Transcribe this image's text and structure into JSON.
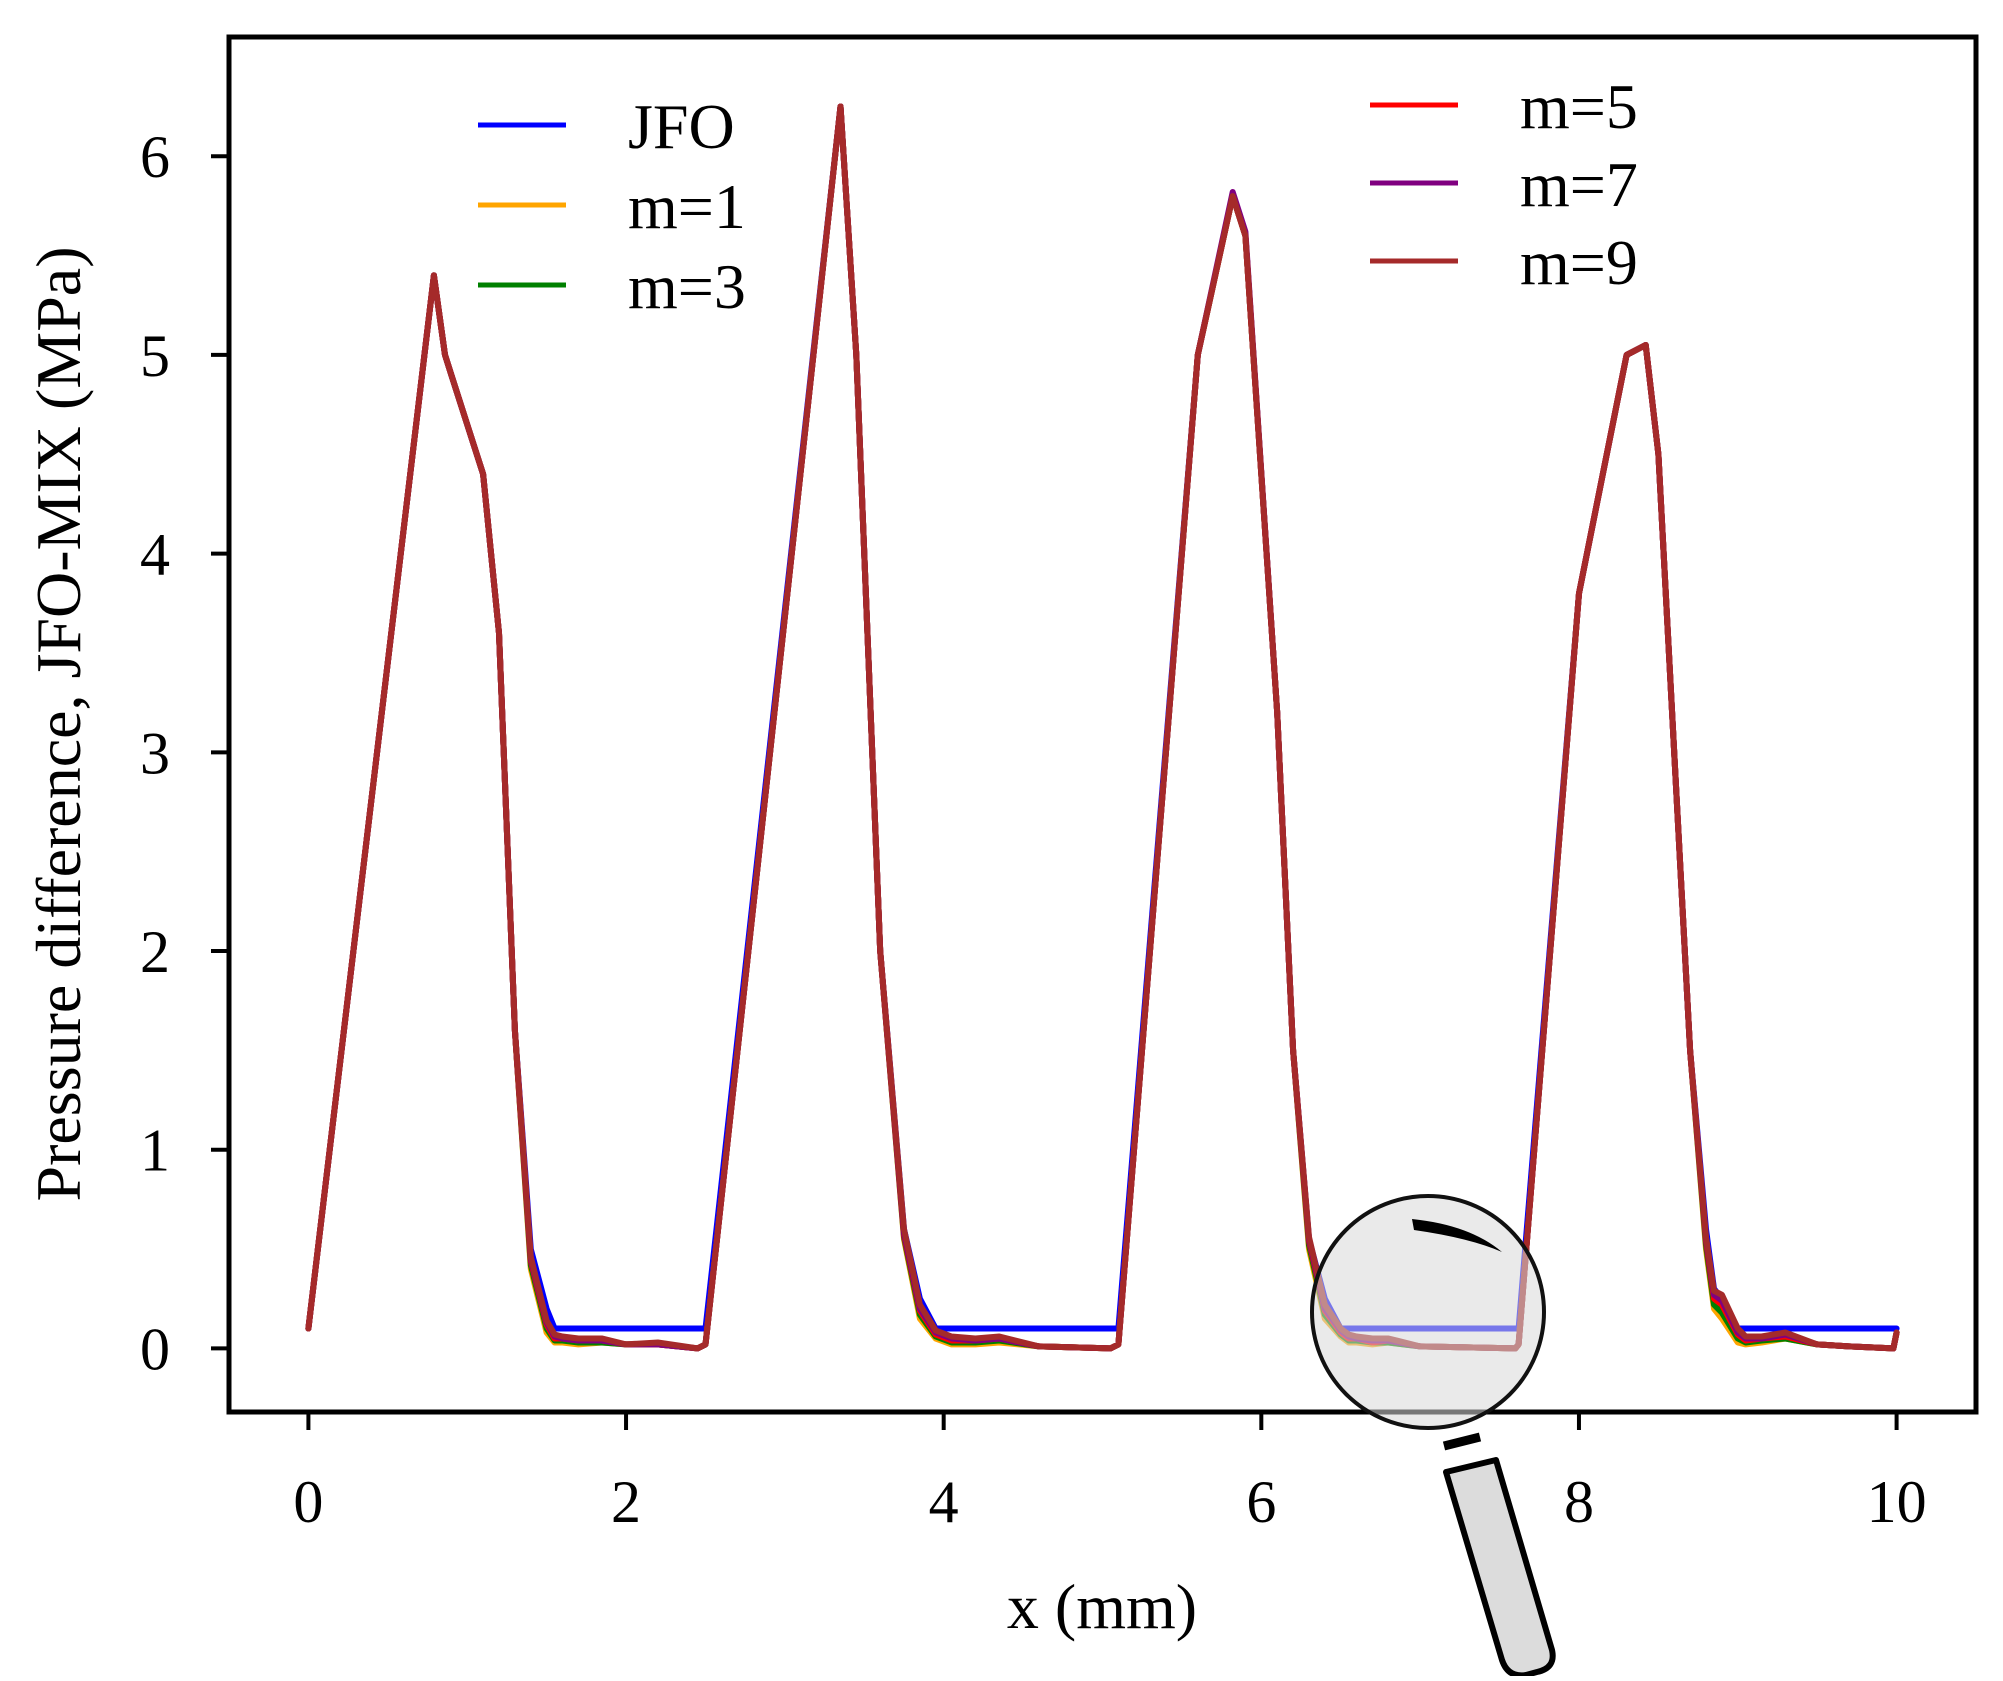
{
  "chart_data": {
    "type": "line",
    "title": "",
    "xlabel": "x (mm)",
    "ylabel": "Pressure difference, JFO-MIX (MPa)",
    "xlim": [
      -0.5,
      10.5
    ],
    "ylim": [
      -0.32,
      6.6
    ],
    "xticks": [
      0,
      2,
      4,
      6,
      8,
      10
    ],
    "yticks": [
      0,
      1,
      2,
      3,
      4,
      5,
      6
    ],
    "grid": false,
    "legend": {
      "columns": 2,
      "placement": "top"
    },
    "series": [
      {
        "name": "JFO",
        "color": "#0000ff",
        "x": [
          0,
          0.79,
          0.86,
          0.9,
          1.0,
          1.1,
          1.2,
          1.3,
          1.4,
          1.5,
          1.55,
          1.6,
          1.65,
          2.45,
          2.5,
          3.35,
          3.45,
          3.6,
          3.75,
          3.85,
          3.95,
          4.05,
          5.05,
          5.1,
          5.6,
          5.82,
          5.9,
          6.1,
          6.2,
          6.3,
          6.4,
          6.5,
          6.55,
          7.6,
          7.62,
          8.0,
          8.3,
          8.42,
          8.5,
          8.6,
          8.7,
          8.8,
          8.85,
          8.9,
          9.0,
          9.05,
          10.0
        ],
        "y": [
          0.1,
          5.4,
          5.0,
          4.9,
          4.65,
          4.4,
          3.6,
          1.6,
          0.5,
          0.2,
          0.1,
          0.1,
          0.1,
          0.1,
          0.1,
          6.25,
          5.0,
          2.0,
          0.6,
          0.25,
          0.1,
          0.1,
          0.1,
          0.1,
          5.0,
          5.8,
          5.6,
          3.2,
          1.5,
          0.55,
          0.25,
          0.1,
          0.1,
          0.1,
          0.1,
          3.8,
          5.0,
          5.05,
          4.5,
          3.0,
          1.5,
          0.6,
          0.3,
          0.25,
          0.1,
          0.1,
          0.1
        ]
      },
      {
        "name": "m=1",
        "color": "#ffa500",
        "x": [
          0,
          0.79,
          0.86,
          0.9,
          1.0,
          1.1,
          1.2,
          1.3,
          1.4,
          1.5,
          1.55,
          1.6,
          1.7,
          1.85,
          2.0,
          2.2,
          2.45,
          2.5,
          3.35,
          3.45,
          3.6,
          3.75,
          3.85,
          3.95,
          4.05,
          4.2,
          4.35,
          4.6,
          5.05,
          5.1,
          5.6,
          5.82,
          5.9,
          6.1,
          6.2,
          6.3,
          6.4,
          6.5,
          6.55,
          6.6,
          6.7,
          6.8,
          7.0,
          7.6,
          7.62,
          8.0,
          8.3,
          8.42,
          8.5,
          8.6,
          8.7,
          8.8,
          8.85,
          8.9,
          9.0,
          9.05,
          9.15,
          9.3,
          9.5,
          9.7,
          9.98,
          10.0
        ],
        "y": [
          0.1,
          5.4,
          5.0,
          4.9,
          4.65,
          4.4,
          3.6,
          1.6,
          0.4,
          0.08,
          0.03,
          0.03,
          0.02,
          0.03,
          0.02,
          0.02,
          0.0,
          0.02,
          6.25,
          5.0,
          2.0,
          0.55,
          0.15,
          0.05,
          0.02,
          0.02,
          0.03,
          0.01,
          0.0,
          0.02,
          5.0,
          5.8,
          5.6,
          3.2,
          1.5,
          0.5,
          0.15,
          0.06,
          0.03,
          0.03,
          0.02,
          0.03,
          0.01,
          0.0,
          0.02,
          3.8,
          5.0,
          5.05,
          4.5,
          3.0,
          1.5,
          0.5,
          0.2,
          0.15,
          0.03,
          0.02,
          0.03,
          0.05,
          0.02,
          0.01,
          0.0,
          0.08
        ]
      },
      {
        "name": "m=3",
        "color": "#008000",
        "x": [
          0,
          0.79,
          0.86,
          0.9,
          1.0,
          1.1,
          1.2,
          1.3,
          1.4,
          1.5,
          1.55,
          1.6,
          1.7,
          1.85,
          2.0,
          2.2,
          2.45,
          2.5,
          3.35,
          3.45,
          3.6,
          3.75,
          3.85,
          3.95,
          4.05,
          4.2,
          4.35,
          4.6,
          5.05,
          5.1,
          5.6,
          5.82,
          5.9,
          6.1,
          6.2,
          6.3,
          6.4,
          6.5,
          6.55,
          6.6,
          6.7,
          6.8,
          7.0,
          7.6,
          7.62,
          8.0,
          8.3,
          8.42,
          8.5,
          8.6,
          8.7,
          8.8,
          8.85,
          8.9,
          9.0,
          9.05,
          9.15,
          9.3,
          9.5,
          9.7,
          9.98,
          10.0
        ],
        "y": [
          0.1,
          5.4,
          5.0,
          4.9,
          4.65,
          4.4,
          3.6,
          1.6,
          0.42,
          0.1,
          0.04,
          0.04,
          0.03,
          0.03,
          0.02,
          0.02,
          0.0,
          0.02,
          6.25,
          5.0,
          2.0,
          0.56,
          0.17,
          0.06,
          0.03,
          0.03,
          0.04,
          0.01,
          0.0,
          0.02,
          5.0,
          5.8,
          5.6,
          3.2,
          1.5,
          0.52,
          0.17,
          0.07,
          0.04,
          0.04,
          0.03,
          0.03,
          0.01,
          0.0,
          0.02,
          3.8,
          5.0,
          5.05,
          4.5,
          3.0,
          1.5,
          0.52,
          0.22,
          0.18,
          0.05,
          0.03,
          0.04,
          0.05,
          0.02,
          0.01,
          0.0,
          0.08
        ]
      },
      {
        "name": "m=5",
        "color": "#ff0000",
        "x": [
          0,
          0.79,
          0.86,
          0.9,
          1.0,
          1.1,
          1.2,
          1.3,
          1.4,
          1.5,
          1.55,
          1.6,
          1.7,
          1.85,
          2.0,
          2.2,
          2.45,
          2.5,
          3.35,
          3.45,
          3.6,
          3.75,
          3.85,
          3.95,
          4.05,
          4.2,
          4.35,
          4.6,
          5.05,
          5.1,
          5.6,
          5.82,
          5.9,
          6.1,
          6.2,
          6.3,
          6.4,
          6.5,
          6.55,
          6.6,
          6.7,
          6.8,
          7.0,
          7.6,
          7.62,
          8.0,
          8.3,
          8.42,
          8.5,
          8.6,
          8.7,
          8.8,
          8.85,
          8.9,
          9.0,
          9.05,
          9.15,
          9.3,
          9.5,
          9.7,
          9.98,
          10.0
        ],
        "y": [
          0.1,
          5.4,
          5.0,
          4.9,
          4.65,
          4.4,
          3.6,
          1.6,
          0.44,
          0.12,
          0.05,
          0.05,
          0.04,
          0.04,
          0.02,
          0.02,
          0.0,
          0.02,
          6.25,
          5.0,
          2.0,
          0.57,
          0.19,
          0.07,
          0.04,
          0.04,
          0.05,
          0.01,
          0.0,
          0.02,
          5.0,
          5.8,
          5.6,
          3.2,
          1.5,
          0.54,
          0.19,
          0.08,
          0.05,
          0.05,
          0.03,
          0.04,
          0.01,
          0.0,
          0.02,
          3.8,
          5.0,
          5.05,
          4.5,
          3.0,
          1.5,
          0.54,
          0.25,
          0.22,
          0.07,
          0.04,
          0.05,
          0.06,
          0.02,
          0.01,
          0.0,
          0.08
        ]
      },
      {
        "name": "m=7",
        "color": "#800080",
        "x": [
          0,
          0.79,
          0.86,
          0.9,
          1.0,
          1.1,
          1.2,
          1.3,
          1.4,
          1.5,
          1.55,
          1.6,
          1.7,
          1.85,
          2.0,
          2.2,
          2.45,
          2.5,
          3.35,
          3.45,
          3.6,
          3.75,
          3.85,
          3.95,
          4.05,
          4.2,
          4.35,
          4.6,
          5.05,
          5.1,
          5.6,
          5.82,
          5.9,
          6.1,
          6.2,
          6.3,
          6.4,
          6.5,
          6.55,
          6.6,
          6.7,
          6.8,
          7.0,
          7.6,
          7.62,
          8.0,
          8.3,
          8.42,
          8.5,
          8.6,
          8.7,
          8.8,
          8.85,
          8.9,
          9.0,
          9.05,
          9.15,
          9.3,
          9.5,
          9.7,
          9.98,
          10.0
        ],
        "y": [
          0.1,
          5.4,
          5.0,
          4.9,
          4.65,
          4.4,
          3.6,
          1.6,
          0.45,
          0.13,
          0.06,
          0.05,
          0.04,
          0.04,
          0.02,
          0.02,
          0.0,
          0.02,
          6.25,
          5.0,
          2.0,
          0.58,
          0.2,
          0.08,
          0.05,
          0.04,
          0.05,
          0.01,
          0.0,
          0.02,
          5.0,
          5.82,
          5.62,
          3.2,
          1.5,
          0.55,
          0.2,
          0.09,
          0.06,
          0.05,
          0.04,
          0.04,
          0.01,
          0.0,
          0.02,
          3.8,
          5.0,
          5.05,
          4.5,
          3.0,
          1.5,
          0.55,
          0.27,
          0.24,
          0.08,
          0.05,
          0.05,
          0.07,
          0.02,
          0.01,
          0.0,
          0.08
        ]
      },
      {
        "name": "m=9",
        "color": "#a52a2a",
        "x": [
          0,
          0.79,
          0.86,
          0.9,
          1.0,
          1.1,
          1.2,
          1.3,
          1.4,
          1.5,
          1.55,
          1.6,
          1.7,
          1.85,
          2.0,
          2.2,
          2.45,
          2.5,
          3.35,
          3.45,
          3.6,
          3.75,
          3.85,
          3.95,
          4.05,
          4.2,
          4.35,
          4.6,
          5.05,
          5.1,
          5.6,
          5.82,
          5.9,
          6.1,
          6.2,
          6.3,
          6.4,
          6.5,
          6.55,
          6.6,
          6.7,
          6.8,
          7.0,
          7.6,
          7.62,
          8.0,
          8.3,
          8.42,
          8.5,
          8.6,
          8.7,
          8.8,
          8.85,
          8.9,
          9.0,
          9.05,
          9.15,
          9.3,
          9.5,
          9.7,
          9.98,
          10.0
        ],
        "y": [
          0.1,
          5.4,
          5.0,
          4.9,
          4.65,
          4.4,
          3.6,
          1.6,
          0.46,
          0.14,
          0.07,
          0.06,
          0.05,
          0.05,
          0.02,
          0.03,
          0.0,
          0.02,
          6.25,
          5.0,
          2.0,
          0.6,
          0.22,
          0.09,
          0.06,
          0.05,
          0.06,
          0.01,
          0.0,
          0.02,
          5.0,
          5.8,
          5.6,
          3.2,
          1.5,
          0.56,
          0.22,
          0.1,
          0.07,
          0.06,
          0.05,
          0.05,
          0.01,
          0.0,
          0.02,
          3.8,
          5.0,
          5.05,
          4.5,
          3.0,
          1.5,
          0.56,
          0.29,
          0.27,
          0.1,
          0.06,
          0.06,
          0.08,
          0.02,
          0.01,
          0.0,
          0.08
        ]
      }
    ]
  }
}
